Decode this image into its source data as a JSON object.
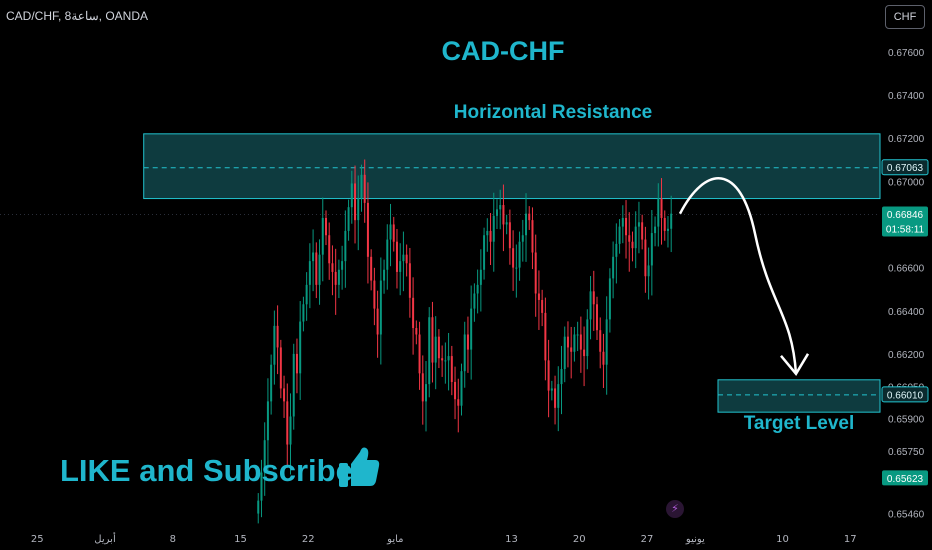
{
  "header": {
    "symbol_info": "CAD/CHF, 8ساعة, OANDA",
    "currency_button": "CHF"
  },
  "colors": {
    "background": "#000000",
    "up_candle": "#089981",
    "down_candle": "#f23645",
    "zone_fill": "#0e3b3f",
    "zone_border": "#22c3cf",
    "annotation_text": "#1fb6cc",
    "arrow": "#ffffff",
    "last_price_label": "#089981",
    "axis_text": "#b2b5be"
  },
  "annotations": {
    "title": "CAD-CHF",
    "resistance_label": "Horizontal Resistance",
    "target_label": "Target Level",
    "promo_text": "LIKE and Subscribe",
    "promo_icon": "thumbs-up-icon"
  },
  "lightning_icon": "lightning-icon",
  "chart_data": {
    "type": "candlestick",
    "symbol": "CAD/CHF",
    "timeframe": "8ساعة",
    "source": "OANDA",
    "y_range": [
      0.6537,
      0.6778
    ],
    "y_ticks": [
      0.676,
      0.674,
      0.672,
      0.67,
      0.668,
      0.666,
      0.664,
      0.662,
      0.6605,
      0.659,
      0.6575,
      0.6546
    ],
    "y_tick_labels": [
      "0.67600",
      "0.67400",
      "0.67200",
      "0.67000",
      "0.66800",
      "0.66600",
      "0.66400",
      "0.66200",
      "0.66050",
      "0.65900",
      "0.65750",
      "0.65460"
    ],
    "x_range_days": [
      -28,
      21
    ],
    "x_ticks": [
      {
        "day": -7,
        "label": "25"
      },
      {
        "day": 0,
        "label": "أبريل"
      },
      {
        "day": 7,
        "label": "8"
      },
      {
        "day": 14,
        "label": "15"
      },
      {
        "day": 21,
        "label": "22"
      },
      {
        "day": 30,
        "label": "مايو"
      },
      {
        "day": 42,
        "label": "13"
      },
      {
        "day": 49,
        "label": "20"
      },
      {
        "day": 56,
        "label": "27"
      },
      {
        "day": 61,
        "label": "يونيو"
      },
      {
        "day": 70,
        "label": "10"
      },
      {
        "day": 77,
        "label": "17"
      }
    ],
    "candles_per_day": 3,
    "closes": [
      0.6552,
      0.6565,
      0.658,
      0.6598,
      0.6615,
      0.6633,
      0.6623,
      0.6604,
      0.6598,
      0.6578,
      0.6591,
      0.662,
      0.6611,
      0.6635,
      0.6643,
      0.6652,
      0.6663,
      0.6667,
      0.6652,
      0.6666,
      0.6683,
      0.6675,
      0.6662,
      0.6658,
      0.6652,
      0.6659,
      0.6663,
      0.6677,
      0.6688,
      0.6699,
      0.6682,
      0.6692,
      0.6703,
      0.669,
      0.6665,
      0.6654,
      0.6641,
      0.6629,
      0.6654,
      0.6659,
      0.6673,
      0.668,
      0.6672,
      0.6658,
      0.6663,
      0.6666,
      0.6662,
      0.6646,
      0.6632,
      0.6629,
      0.6611,
      0.6598,
      0.6606,
      0.6637,
      0.6616,
      0.6628,
      0.6618,
      0.6617,
      0.6617,
      0.6619,
      0.6607,
      0.6599,
      0.6596,
      0.6612,
      0.6629,
      0.6622,
      0.6641,
      0.6648,
      0.6652,
      0.6659,
      0.6675,
      0.6677,
      0.6672,
      0.6684,
      0.6687,
      0.6689,
      0.668,
      0.6681,
      0.6669,
      0.666,
      0.666,
      0.6672,
      0.6675,
      0.6685,
      0.6682,
      0.6667,
      0.6648,
      0.6645,
      0.6639,
      0.6617,
      0.6603,
      0.6604,
      0.6595,
      0.6606,
      0.6613,
      0.6628,
      0.6623,
      0.6621,
      0.6629,
      0.6629,
      0.6622,
      0.6619,
      0.6636,
      0.6649,
      0.6643,
      0.6631,
      0.6621,
      0.6615,
      0.6636,
      0.6655,
      0.6665,
      0.6671,
      0.6679,
      0.6683,
      0.6675,
      0.6672,
      0.6669,
      0.6679,
      0.6681,
      0.6673,
      0.6656,
      0.6661,
      0.6676,
      0.6679,
      0.6692,
      0.6683,
      0.6677,
      0.6678,
      0.6685
    ],
    "last_index_day": 58.5,
    "resistance_zone": {
      "top": 0.6722,
      "bottom": 0.6692,
      "dashed_level": 0.67063,
      "start_day": 4
    },
    "target_zone": {
      "top": 0.6608,
      "bottom": 0.6593,
      "dashed_level": 0.6601
    },
    "price_labels": [
      {
        "value": 0.67063,
        "text": "0.67063",
        "style": "outline"
      },
      {
        "value": 0.66846,
        "text": "0.66846",
        "sub": "01:58:11",
        "style": "green"
      },
      {
        "value": 0.6601,
        "text": "0.66010",
        "style": "outline"
      },
      {
        "value": 0.65623,
        "text": "0.65623",
        "style": "green"
      }
    ],
    "projection_arrow": {
      "from_value": 0.6685,
      "peak_value": 0.6699,
      "to_value": 0.6608
    }
  }
}
